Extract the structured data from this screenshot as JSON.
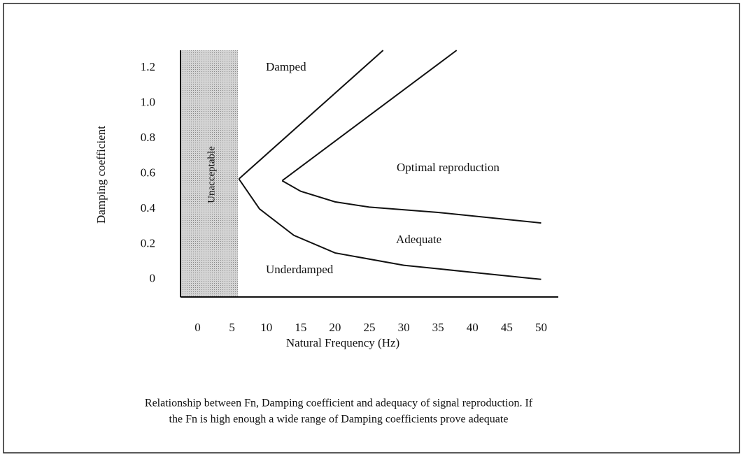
{
  "chart_data": {
    "type": "line",
    "xlabel": "Natural Frequency (Hz)",
    "ylabel": "Damping coefficient",
    "xlim": [
      -2.5,
      52.5
    ],
    "ylim": [
      -0.1,
      1.3
    ],
    "xticks": [
      0,
      5,
      10,
      15,
      20,
      25,
      30,
      35,
      40,
      45,
      50
    ],
    "yticks": [
      0,
      0.2,
      0.4,
      0.6,
      0.8,
      {
        "value": 1,
        "label": "1.0"
      },
      1.2
    ],
    "grid": false,
    "series": [
      {
        "color": "#111111",
        "x": [
          6,
          27
        ],
        "values": [
          0.57,
          1.3
        ]
      },
      {
        "color": "#111111",
        "x": [
          12.3,
          37.7
        ],
        "values": [
          0.56,
          1.3
        ]
      },
      {
        "color": "#111111",
        "x": [
          6,
          9,
          14,
          20,
          30,
          40,
          50
        ],
        "values": [
          0.57,
          0.4,
          0.25,
          0.15,
          0.08,
          0.04,
          0.0
        ]
      },
      {
        "color": "#111111",
        "x": [
          12.3,
          15,
          20,
          25,
          35,
          50
        ],
        "values": [
          0.56,
          0.5,
          0.44,
          0.41,
          0.38,
          0.32
        ]
      }
    ],
    "annotations": [
      "Damped",
      "Optimal reproduction",
      "Adequate",
      "Underdamped",
      "Unacceptable"
    ],
    "caption": [
      "Relationship between Fn, Damping coefficient and adequacy of signal reproduction.  If",
      "the Fn is high enough a wide range of Damping coefficients prove adequate"
    ]
  }
}
